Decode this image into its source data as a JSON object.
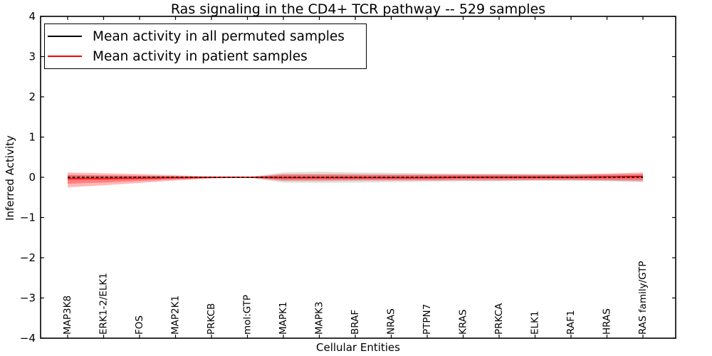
{
  "figure": {
    "title": "Ras signaling in the CD4+ TCR pathway -- 529 samples",
    "xlabel": "Cellular Entities",
    "ylabel": "Inferred Activity"
  },
  "legend": {
    "entries": [
      {
        "label": "Mean activity in all permuted samples",
        "color": "#000000"
      },
      {
        "label": "Mean activity in patient samples",
        "color": "#ff0000"
      }
    ]
  },
  "chart_data": {
    "type": "line",
    "title": "Ras signaling in the CD4+ TCR pathway -- 529 samples",
    "xlabel": "Cellular Entities",
    "ylabel": "Inferred Activity",
    "ylim": [
      -4,
      4
    ],
    "yticks": [
      -4,
      -3,
      -2,
      -1,
      0,
      1,
      2,
      3,
      4
    ],
    "grid": false,
    "legend_position": "upper left",
    "categories": [
      "MAP3K8",
      "ERK1-2/ELK1",
      "FOS",
      "MAP2K1",
      "PRKCB",
      "mol:GTP",
      "MAPK1",
      "MAPK3",
      "BRAF",
      "NRAS",
      "PTPN7",
      "KRAS",
      "PRKCA",
      "ELK1",
      "RAF1",
      "HRAS",
      "RAS family/GTP"
    ],
    "series": [
      {
        "name": "Mean activity in all permuted samples",
        "color": "#000000",
        "style": "dashed",
        "values": [
          0,
          0,
          0,
          0,
          0,
          0,
          0,
          0,
          0,
          0,
          0,
          0,
          0,
          0,
          0,
          0,
          0
        ]
      },
      {
        "name": "Mean activity in patient samples",
        "color": "#ff0000",
        "style": "solid",
        "values": [
          -0.03,
          -0.03,
          -0.02,
          -0.01,
          0,
          0,
          -0.01,
          -0.01,
          -0.01,
          -0.01,
          -0.01,
          0,
          0,
          0,
          0,
          0.01,
          0.02
        ]
      }
    ],
    "bands": [
      {
        "name": "permuted-band",
        "color": "#000000",
        "alpha": 0.13,
        "upper": [
          0.05,
          0.04,
          0.04,
          0.03,
          0.01,
          0.005,
          0.12,
          0.14,
          0.12,
          0.11,
          0.1,
          0.09,
          0.09,
          0.08,
          0.08,
          0.08,
          0.09
        ],
        "lower": [
          -0.08,
          -0.07,
          -0.06,
          -0.04,
          -0.01,
          -0.005,
          -0.13,
          -0.14,
          -0.13,
          -0.12,
          -0.11,
          -0.1,
          -0.1,
          -0.09,
          -0.09,
          -0.1,
          -0.12
        ]
      },
      {
        "name": "patient-band-outer",
        "color": "#ff0000",
        "alpha": 0.28,
        "upper": [
          0.12,
          0.1,
          0.08,
          0.05,
          0.02,
          0.005,
          0.08,
          0.08,
          0.08,
          0.07,
          0.07,
          0.07,
          0.07,
          0.07,
          0.07,
          0.09,
          0.12
        ],
        "lower": [
          -0.25,
          -0.2,
          -0.14,
          -0.08,
          -0.03,
          -0.005,
          -0.09,
          -0.09,
          -0.08,
          -0.08,
          -0.08,
          -0.08,
          -0.08,
          -0.07,
          -0.07,
          -0.08,
          -0.1
        ]
      },
      {
        "name": "patient-band-inner",
        "color": "#ff0000",
        "alpha": 0.3,
        "upper": [
          0.06,
          0.05,
          0.04,
          0.03,
          0.01,
          0.003,
          0.06,
          0.06,
          0.05,
          0.05,
          0.05,
          0.05,
          0.05,
          0.05,
          0.05,
          0.06,
          0.07
        ],
        "lower": [
          -0.16,
          -0.13,
          -0.09,
          -0.05,
          -0.02,
          -0.003,
          -0.06,
          -0.06,
          -0.06,
          -0.06,
          -0.06,
          -0.05,
          -0.05,
          -0.05,
          -0.05,
          -0.06,
          -0.06
        ]
      }
    ]
  }
}
